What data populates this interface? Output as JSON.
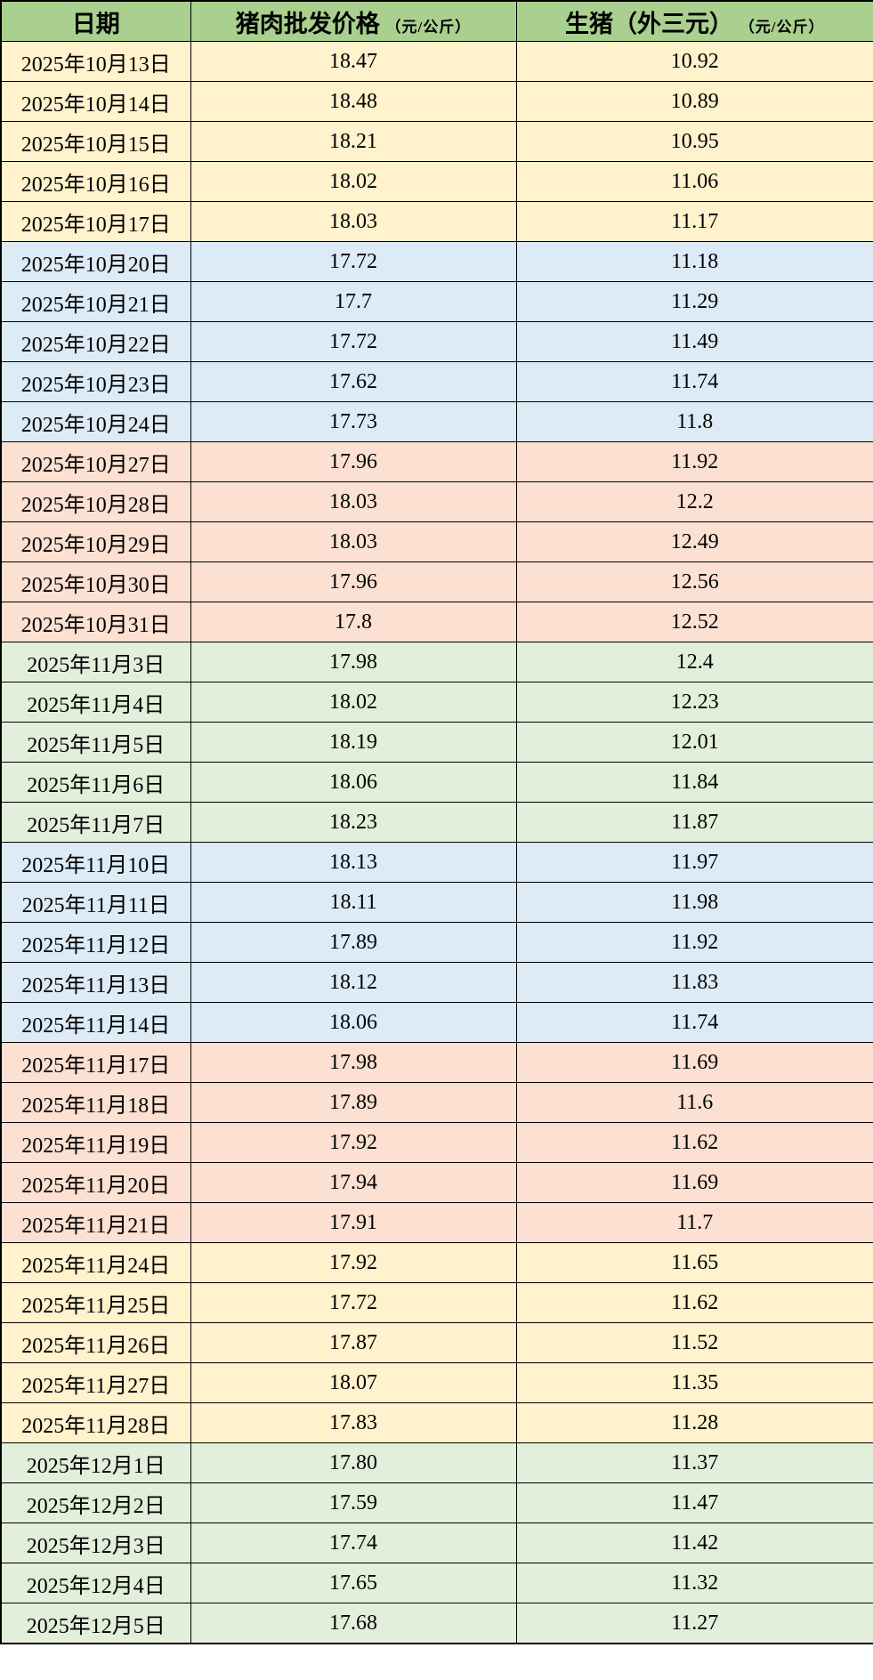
{
  "colors": {
    "header_bg": "#A9D08E",
    "group_yellow": "#FFF2CC",
    "group_blue": "#DDEBF7",
    "group_pink": "#FCE0D2",
    "group_green": "#E2EFDA",
    "border": "#000000"
  },
  "chart_data": {
    "type": "table",
    "columns": [
      {
        "label": "日期",
        "unit": ""
      },
      {
        "label": "猪肉批发价格",
        "unit": "（元/公斤）"
      },
      {
        "label": "生猪（外三元）",
        "unit": "（元/公斤）"
      }
    ],
    "column_keys": [
      "date",
      "pork_wholesale_price",
      "hog_price"
    ],
    "rows": [
      {
        "date": "2025年10月13日",
        "pork_wholesale_price": "18.47",
        "hog_price": "10.92",
        "group": "yellow"
      },
      {
        "date": "2025年10月14日",
        "pork_wholesale_price": "18.48",
        "hog_price": "10.89",
        "group": "yellow"
      },
      {
        "date": "2025年10月15日",
        "pork_wholesale_price": "18.21",
        "hog_price": "10.95",
        "group": "yellow"
      },
      {
        "date": "2025年10月16日",
        "pork_wholesale_price": "18.02",
        "hog_price": "11.06",
        "group": "yellow"
      },
      {
        "date": "2025年10月17日",
        "pork_wholesale_price": "18.03",
        "hog_price": "11.17",
        "group": "yellow"
      },
      {
        "date": "2025年10月20日",
        "pork_wholesale_price": "17.72",
        "hog_price": "11.18",
        "group": "blue"
      },
      {
        "date": "2025年10月21日",
        "pork_wholesale_price": "17.7",
        "hog_price": "11.29",
        "group": "blue"
      },
      {
        "date": "2025年10月22日",
        "pork_wholesale_price": "17.72",
        "hog_price": "11.49",
        "group": "blue"
      },
      {
        "date": "2025年10月23日",
        "pork_wholesale_price": "17.62",
        "hog_price": "11.74",
        "group": "blue"
      },
      {
        "date": "2025年10月24日",
        "pork_wholesale_price": "17.73",
        "hog_price": "11.8",
        "group": "blue"
      },
      {
        "date": "2025年10月27日",
        "pork_wholesale_price": "17.96",
        "hog_price": "11.92",
        "group": "pink"
      },
      {
        "date": "2025年10月28日",
        "pork_wholesale_price": "18.03",
        "hog_price": "12.2",
        "group": "pink"
      },
      {
        "date": "2025年10月29日",
        "pork_wholesale_price": "18.03",
        "hog_price": "12.49",
        "group": "pink"
      },
      {
        "date": "2025年10月30日",
        "pork_wholesale_price": "17.96",
        "hog_price": "12.56",
        "group": "pink"
      },
      {
        "date": "2025年10月31日",
        "pork_wholesale_price": "17.8",
        "hog_price": "12.52",
        "group": "pink"
      },
      {
        "date": "2025年11月3日",
        "pork_wholesale_price": "17.98",
        "hog_price": "12.4",
        "group": "green"
      },
      {
        "date": "2025年11月4日",
        "pork_wholesale_price": "18.02",
        "hog_price": "12.23",
        "group": "green"
      },
      {
        "date": "2025年11月5日",
        "pork_wholesale_price": "18.19",
        "hog_price": "12.01",
        "group": "green"
      },
      {
        "date": "2025年11月6日",
        "pork_wholesale_price": "18.06",
        "hog_price": "11.84",
        "group": "green"
      },
      {
        "date": "2025年11月7日",
        "pork_wholesale_price": "18.23",
        "hog_price": "11.87",
        "group": "green"
      },
      {
        "date": "2025年11月10日",
        "pork_wholesale_price": "18.13",
        "hog_price": "11.97",
        "group": "blue"
      },
      {
        "date": "2025年11月11日",
        "pork_wholesale_price": "18.11",
        "hog_price": "11.98",
        "group": "blue"
      },
      {
        "date": "2025年11月12日",
        "pork_wholesale_price": "17.89",
        "hog_price": "11.92",
        "group": "blue"
      },
      {
        "date": "2025年11月13日",
        "pork_wholesale_price": "18.12",
        "hog_price": "11.83",
        "group": "blue"
      },
      {
        "date": "2025年11月14日",
        "pork_wholesale_price": "18.06",
        "hog_price": "11.74",
        "group": "blue"
      },
      {
        "date": "2025年11月17日",
        "pork_wholesale_price": "17.98",
        "hog_price": "11.69",
        "group": "pink"
      },
      {
        "date": "2025年11月18日",
        "pork_wholesale_price": "17.89",
        "hog_price": "11.6",
        "group": "pink"
      },
      {
        "date": "2025年11月19日",
        "pork_wholesale_price": "17.92",
        "hog_price": "11.62",
        "group": "pink"
      },
      {
        "date": "2025年11月20日",
        "pork_wholesale_price": "17.94",
        "hog_price": "11.69",
        "group": "pink"
      },
      {
        "date": "2025年11月21日",
        "pork_wholesale_price": "17.91",
        "hog_price": "11.7",
        "group": "pink"
      },
      {
        "date": "2025年11月24日",
        "pork_wholesale_price": "17.92",
        "hog_price": "11.65",
        "group": "yellow"
      },
      {
        "date": "2025年11月25日",
        "pork_wholesale_price": "17.72",
        "hog_price": "11.62",
        "group": "yellow"
      },
      {
        "date": "2025年11月26日",
        "pork_wholesale_price": "17.87",
        "hog_price": "11.52",
        "group": "yellow"
      },
      {
        "date": "2025年11月27日",
        "pork_wholesale_price": "18.07",
        "hog_price": "11.35",
        "group": "yellow"
      },
      {
        "date": "2025年11月28日",
        "pork_wholesale_price": "17.83",
        "hog_price": "11.28",
        "group": "yellow"
      },
      {
        "date": "2025年12月1日",
        "pork_wholesale_price": "17.80",
        "hog_price": "11.37",
        "group": "green"
      },
      {
        "date": "2025年12月2日",
        "pork_wholesale_price": "17.59",
        "hog_price": "11.47",
        "group": "green"
      },
      {
        "date": "2025年12月3日",
        "pork_wholesale_price": "17.74",
        "hog_price": "11.42",
        "group": "green"
      },
      {
        "date": "2025年12月4日",
        "pork_wholesale_price": "17.65",
        "hog_price": "11.32",
        "group": "green"
      },
      {
        "date": "2025年12月5日",
        "pork_wholesale_price": "17.68",
        "hog_price": "11.27",
        "group": "green"
      }
    ]
  }
}
